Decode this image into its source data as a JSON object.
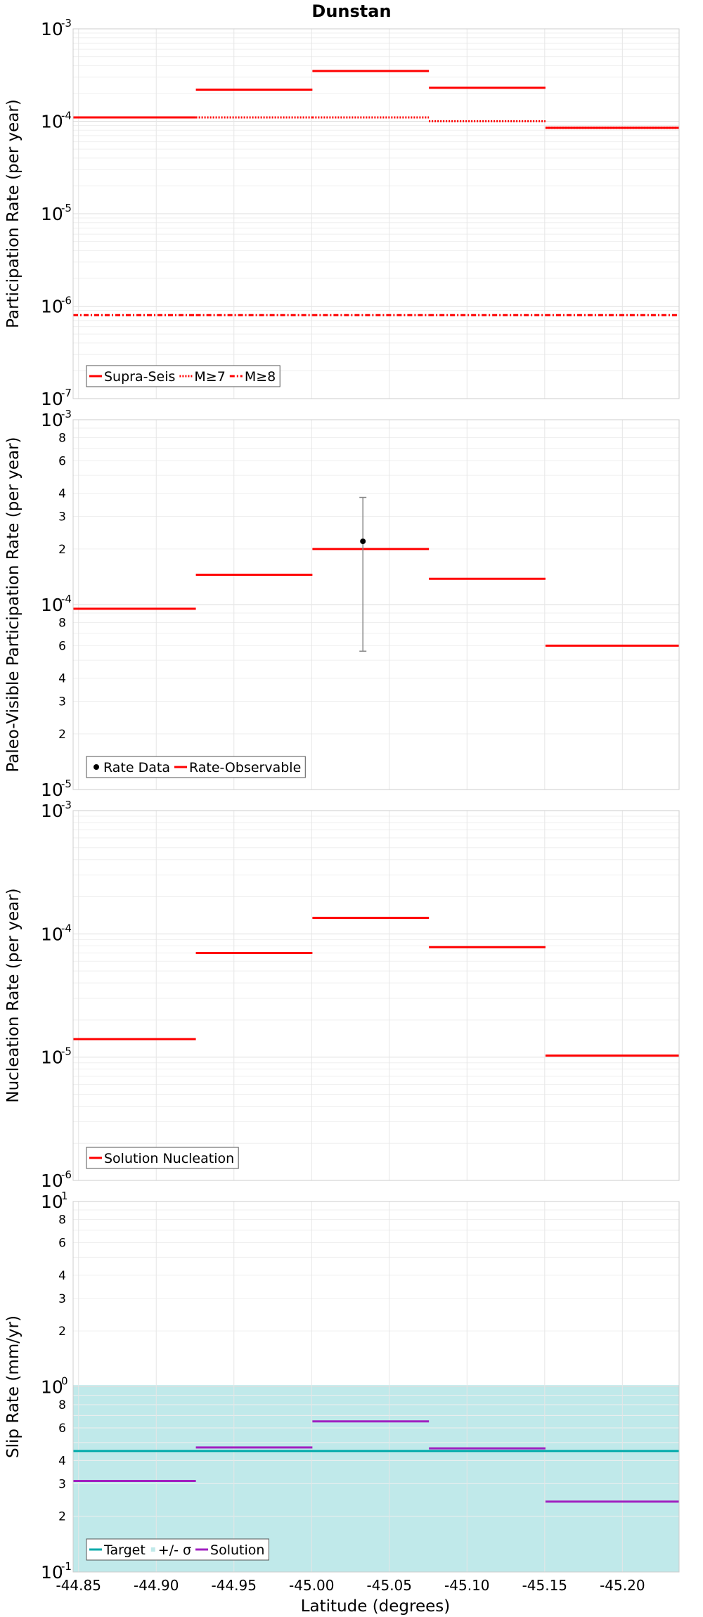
{
  "title": "Dunstan",
  "xlabel": "Latitude (degrees)",
  "x_ticks": [
    -44.85,
    -44.9,
    -44.95,
    -45.0,
    -45.05,
    -45.1,
    -45.15,
    -45.2
  ],
  "x_tick_labels": [
    "-44.85",
    "-44.90",
    "-44.95",
    "-45.00",
    "-45.05",
    "-45.10",
    "-45.15",
    "-45.20"
  ],
  "xlim": [
    -44.8465,
    -45.2365
  ],
  "colors": {
    "red": "#ff0000",
    "cyan": "#00aaaa",
    "cyan_band": "#c0e9ea",
    "purple": "#a020c0",
    "gray": "#888888",
    "black": "#000000"
  },
  "chart_data": [
    {
      "id": "participation",
      "type": "line",
      "ylabel": "Participation Rate (per year)",
      "y_scale": "log",
      "ylim": [
        1e-07,
        0.001
      ],
      "minor_labels": false,
      "major_tick_labels": [
        {
          "value": 0.001,
          "base": "10",
          "exp": "-3"
        },
        {
          "value": 0.0001,
          "base": "10",
          "exp": "-4"
        },
        {
          "value": 1e-05,
          "base": "10",
          "exp": "-5"
        },
        {
          "value": 1e-06,
          "base": "10",
          "exp": "-6"
        },
        {
          "value": 1e-07,
          "base": "10",
          "exp": "-7"
        }
      ],
      "segment_bounds": [
        -44.8465,
        -44.9255,
        -45.0005,
        -45.0755,
        -45.1505,
        -45.2365
      ],
      "series": [
        {
          "name": "Supra-Seis",
          "style": "solid",
          "color": "#ff0000",
          "values": [
            0.00011,
            0.00022,
            0.00035,
            0.00023,
            8.5e-05
          ]
        },
        {
          "name": "M≥7",
          "style": "dotted",
          "color": "#ff0000",
          "values": [
            0.00011,
            0.00011,
            0.00011,
            0.0001,
            8.5e-05
          ]
        },
        {
          "name": "M≥8",
          "style": "dashdot",
          "color": "#ff0000",
          "values": [
            8e-07,
            8e-07,
            8e-07,
            8e-07,
            8e-07
          ]
        }
      ],
      "legend": [
        {
          "label": "Supra-Seis",
          "style": "solid",
          "color": "#ff0000"
        },
        {
          "label": "M≥7",
          "style": "dotted",
          "color": "#ff0000"
        },
        {
          "label": "M≥8",
          "style": "dashdot",
          "color": "#ff0000"
        }
      ],
      "legend_position": "bottom-left"
    },
    {
      "id": "paleo",
      "type": "line",
      "ylabel": "Paleo-Visible Participation Rate (per year)",
      "y_scale": "log",
      "ylim": [
        1e-05,
        0.001
      ],
      "minor_labels": true,
      "major_tick_labels": [
        {
          "value": 0.001,
          "base": "10",
          "exp": "-3"
        },
        {
          "value": 0.0001,
          "base": "10",
          "exp": "-4"
        },
        {
          "value": 1e-05,
          "base": "10",
          "exp": "-5"
        }
      ],
      "segment_bounds": [
        -44.8465,
        -44.9255,
        -45.0005,
        -45.0755,
        -45.1505,
        -45.2365
      ],
      "series": [
        {
          "name": "Rate-Observable",
          "style": "solid",
          "color": "#ff0000",
          "values": [
            9.5e-05,
            0.000145,
            0.0002,
            0.000138,
            6e-05
          ]
        }
      ],
      "points": [
        {
          "name": "Rate Data",
          "x": -45.033,
          "y": 0.00022,
          "y_low": 5.6e-05,
          "y_high": 0.00038
        }
      ],
      "legend": [
        {
          "label": "Rate Data",
          "style": "dot",
          "color": "#000000"
        },
        {
          "label": "Rate-Observable",
          "style": "solid",
          "color": "#ff0000"
        }
      ],
      "legend_position": "bottom-left"
    },
    {
      "id": "nucleation",
      "type": "line",
      "ylabel": "Nucleation Rate (per year)",
      "y_scale": "log",
      "ylim": [
        1e-06,
        0.001
      ],
      "minor_labels": false,
      "major_tick_labels": [
        {
          "value": 0.001,
          "base": "10",
          "exp": "-3"
        },
        {
          "value": 0.0001,
          "base": "10",
          "exp": "-4"
        },
        {
          "value": 1e-05,
          "base": "10",
          "exp": "-5"
        },
        {
          "value": 1e-06,
          "base": "10",
          "exp": "-6"
        }
      ],
      "segment_bounds": [
        -44.8465,
        -44.9255,
        -45.0005,
        -45.0755,
        -45.1505,
        -45.2365
      ],
      "series": [
        {
          "name": "Solution Nucleation",
          "style": "solid",
          "color": "#ff0000",
          "values": [
            1.4e-05,
            7e-05,
            0.000135,
            7.8e-05,
            1.03e-05
          ]
        }
      ],
      "legend": [
        {
          "label": "Solution Nucleation",
          "style": "solid",
          "color": "#ff0000"
        }
      ],
      "legend_position": "bottom-left"
    },
    {
      "id": "slip",
      "type": "line",
      "ylabel": "Slip Rate (mm/yr)",
      "y_scale": "log",
      "ylim": [
        0.1,
        10
      ],
      "minor_labels": true,
      "major_tick_labels": [
        {
          "value": 10,
          "base": "10",
          "exp": "1"
        },
        {
          "value": 1,
          "base": "10",
          "exp": "0"
        },
        {
          "value": 0.1,
          "base": "10",
          "exp": "-1"
        }
      ],
      "segment_bounds": [
        -44.8465,
        -44.9255,
        -45.0005,
        -45.0755,
        -45.1505,
        -45.2365
      ],
      "band": {
        "name": "+/- σ",
        "low": 0.1,
        "high": 1.02,
        "color": "#c0e9ea"
      },
      "target": {
        "name": "Target",
        "value": 0.45,
        "color": "#00aaaa"
      },
      "series": [
        {
          "name": "Solution",
          "style": "solid",
          "color": "#a020c0",
          "values": [
            0.31,
            0.47,
            0.65,
            0.465,
            0.24
          ]
        }
      ],
      "legend": [
        {
          "label": "Target",
          "style": "solid",
          "color": "#00aaaa"
        },
        {
          "label": "+/- σ",
          "style": "band",
          "color": "#c0e9ea"
        },
        {
          "label": "Solution",
          "style": "solid",
          "color": "#a020c0"
        }
      ],
      "legend_position": "bottom-left"
    }
  ]
}
